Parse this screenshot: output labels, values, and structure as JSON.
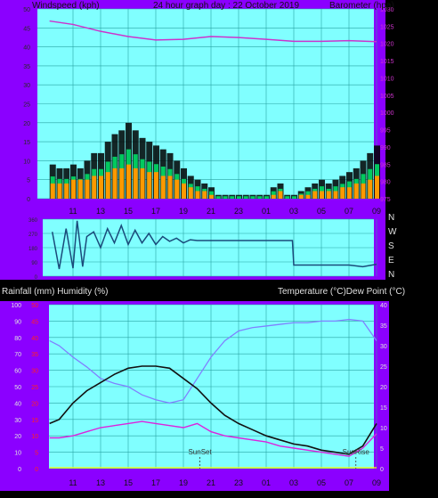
{
  "header": {
    "left_label": "Windspeed (kph)",
    "title": "24 hour graph day : 22 October 2019",
    "right_label": "Barometer (hpa)"
  },
  "lower_header": {
    "left_label": "Rainfall (mm)  Humidity (%)",
    "right_label": "Temperature (°C)Dew Point (°C)"
  },
  "colors": {
    "frame": "#8b00ff",
    "plot_bg": "#80ffff",
    "grid": "#2aa3a3",
    "wind_avg": "#ff9900",
    "wind_gust": "#000000",
    "wind_green": "#00dd66",
    "barometer": "#cc33cc",
    "direction": "#1a4a7a",
    "humidity": "#8080ff",
    "temperature": "#111111",
    "dewpoint": "#dd22dd",
    "rain_axis": "#ff2222",
    "rain_line": "#ffff00"
  },
  "chart_data": [
    {
      "type": "bar",
      "name": "wind",
      "xlabel": "",
      "ylabel": "Windspeed (kph)",
      "ylim": [
        0,
        50
      ],
      "y_ticks": [
        "0",
        "5",
        "10",
        "15",
        "20",
        "25",
        "30",
        "35",
        "40",
        "45",
        "50"
      ],
      "x_ticks": [
        "11",
        "13",
        "15",
        "17",
        "19",
        "21",
        "23",
        "01",
        "03",
        "05",
        "07",
        "09"
      ],
      "grid": true,
      "hours": [
        9.5,
        10,
        10.5,
        11,
        11.5,
        12,
        12.5,
        13,
        13.5,
        14,
        14.5,
        15,
        15.5,
        16,
        16.5,
        17,
        17.5,
        18,
        18.5,
        19,
        19.5,
        20,
        20.5,
        21,
        21.5,
        22,
        22.5,
        23,
        23.5,
        24,
        24.5,
        25,
        25.5,
        26,
        26.5,
        27,
        27.5,
        28,
        28.5,
        29,
        29.5,
        30,
        30.5,
        31,
        31.5,
        32,
        32.5,
        33
      ],
      "series": [
        {
          "name": "gust",
          "values": [
            9,
            8,
            8,
            9,
            8,
            10,
            12,
            12,
            15,
            17,
            18,
            20,
            18,
            16,
            15,
            14,
            13,
            12,
            10,
            8,
            6,
            5,
            4,
            3,
            1,
            1,
            1,
            1,
            1,
            1,
            1,
            1,
            3,
            4,
            1,
            1,
            2,
            3,
            4,
            5,
            4,
            5,
            6,
            7,
            8,
            10,
            12,
            14
          ]
        },
        {
          "name": "average",
          "values": [
            4,
            4,
            4,
            5,
            5,
            5,
            6,
            6,
            7,
            8,
            8,
            9,
            8,
            8,
            7,
            7,
            6,
            6,
            5,
            4,
            3,
            2,
            2,
            1,
            0,
            0,
            0,
            0,
            0,
            0,
            0,
            0,
            1,
            2,
            0,
            0,
            1,
            1,
            2,
            2,
            2,
            2,
            3,
            3,
            4,
            4,
            5,
            6
          ]
        }
      ]
    },
    {
      "type": "line",
      "name": "barometer",
      "ylabel": "Barometer (hpa)",
      "ylim": [
        975,
        1030
      ],
      "y_ticks": [
        "975",
        "980",
        "985",
        "990",
        "995",
        "1000",
        "1005",
        "1010",
        "1015",
        "1020",
        "1025",
        "1030"
      ],
      "hours": [
        9.3,
        11,
        13,
        15,
        17,
        19,
        21,
        23,
        25,
        27,
        29,
        31,
        33
      ],
      "values": [
        1026.5,
        1025.5,
        1023.5,
        1022,
        1021,
        1021.2,
        1022,
        1021.7,
        1021.2,
        1020.6,
        1020.6,
        1020.8,
        1020.5
      ]
    },
    {
      "type": "scatter",
      "name": "wind direction",
      "ylim": [
        0,
        360
      ],
      "y_ticks": [
        "0",
        "90",
        "180",
        "270",
        "360"
      ],
      "compass_labels": [
        "N",
        "W",
        "S",
        "E",
        "N"
      ],
      "hours": [
        9.5,
        10,
        10.5,
        11,
        11.3,
        11.7,
        12,
        12.5,
        13,
        13.5,
        14,
        14.5,
        15,
        15.5,
        16,
        16.5,
        17,
        17.5,
        18,
        18.5,
        19,
        19.5,
        20,
        21,
        22,
        23,
        24,
        25,
        26,
        26.9,
        27,
        28,
        29,
        30,
        31,
        32,
        33
      ],
      "values": [
        280,
        45,
        300,
        50,
        350,
        60,
        250,
        280,
        180,
        300,
        210,
        320,
        200,
        290,
        210,
        270,
        200,
        250,
        220,
        240,
        210,
        230,
        225,
        225,
        225,
        225,
        225,
        225,
        225,
        225,
        70,
        70,
        70,
        70,
        70,
        60,
        75
      ]
    },
    {
      "type": "line",
      "name": "temperature, dew point, humidity, rainfall",
      "x_ticks": [
        "11",
        "13",
        "15",
        "17",
        "19",
        "21",
        "23",
        "01",
        "03",
        "05",
        "07",
        "09"
      ],
      "left_axis": {
        "label": "Humidity (%)",
        "ylim": [
          0,
          100
        ],
        "ticks": [
          "0",
          "10",
          "20",
          "30",
          "40",
          "50",
          "60",
          "70",
          "80",
          "90",
          "100"
        ]
      },
      "rain_axis": {
        "label": "Rainfall (mm)",
        "ylim": [
          0,
          50
        ],
        "ticks": [
          "0",
          "5",
          "10",
          "15",
          "20",
          "25",
          "30",
          "35",
          "40",
          "45",
          "50"
        ]
      },
      "right_axis": {
        "label": "Temperature (°C)",
        "ylim": [
          0,
          40
        ],
        "ticks": [
          "0",
          "5",
          "10",
          "15",
          "20",
          "25",
          "30",
          "35",
          "40"
        ]
      },
      "hours": [
        9.3,
        10,
        11,
        12,
        13,
        14,
        15,
        16,
        17,
        18,
        19,
        20,
        21,
        22,
        23,
        24,
        25,
        26,
        27,
        28,
        29,
        30,
        31,
        32,
        33
      ],
      "series": [
        {
          "name": "Humidity",
          "axis": "left",
          "values": [
            78,
            75,
            68,
            62,
            55,
            52,
            50,
            45,
            42,
            40,
            42,
            55,
            68,
            78,
            84,
            86,
            87,
            88,
            89,
            89,
            90,
            90,
            91,
            90,
            78
          ]
        },
        {
          "name": "Temperature",
          "axis": "right",
          "values": [
            11,
            12,
            16,
            19,
            21,
            23,
            24.5,
            25,
            25,
            24.5,
            22,
            19.5,
            16,
            13,
            11,
            9.5,
            8,
            7,
            6,
            5.5,
            4.5,
            4,
            3.5,
            5.5,
            11
          ]
        },
        {
          "name": "Dew Point",
          "axis": "right",
          "values": [
            7.5,
            7.5,
            8,
            9,
            10,
            10.5,
            11,
            11.5,
            11,
            10.5,
            10,
            11,
            9,
            8,
            7.5,
            7,
            6.5,
            5.5,
            5,
            4.5,
            4,
            3.5,
            3,
            5,
            8.5
          ]
        },
        {
          "name": "Rainfall",
          "axis": "rain",
          "values": [
            0,
            0,
            0,
            0,
            0,
            0,
            0,
            0,
            0,
            0,
            0,
            0,
            0,
            0,
            0,
            0,
            0,
            0,
            0,
            0,
            0,
            0,
            0,
            0,
            0
          ]
        }
      ],
      "annotations": [
        {
          "text": "SunSet",
          "hour": 20.2
        },
        {
          "text": "SunRise",
          "hour": 31.5
        }
      ]
    }
  ]
}
